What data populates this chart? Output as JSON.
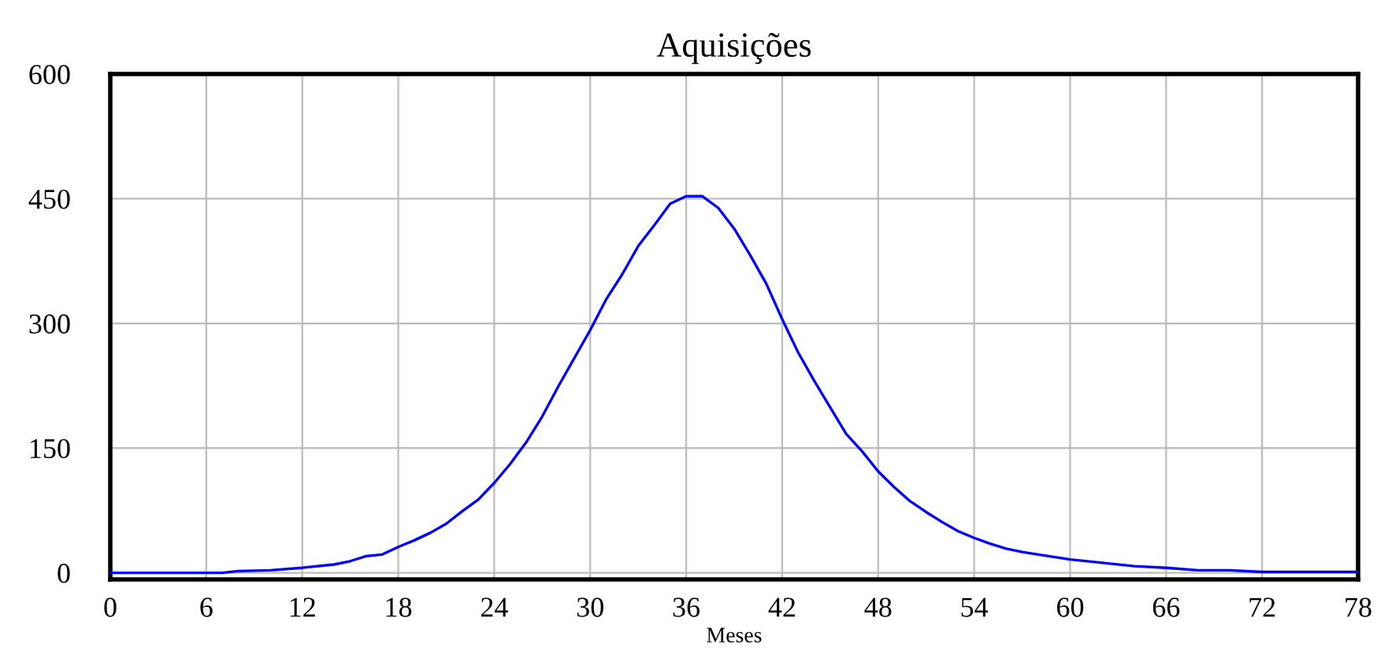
{
  "chart_data": {
    "type": "line",
    "title": "Aquisições",
    "xlabel": "Meses",
    "x": [
      0,
      2,
      4,
      6,
      7,
      8,
      10,
      12,
      14,
      15,
      16,
      17,
      18,
      19,
      20,
      21,
      22,
      23,
      24,
      25,
      26,
      27,
      28,
      29,
      30,
      31,
      32,
      33,
      34,
      35,
      36,
      37,
      38,
      39,
      40,
      41,
      42,
      43,
      44,
      45,
      46,
      47,
      48,
      49,
      50,
      51,
      52,
      53,
      54,
      55,
      56,
      57,
      58,
      60,
      62,
      64,
      66,
      68,
      70,
      72,
      74,
      76,
      78
    ],
    "series": [
      {
        "color": "#0000ff",
        "values": [
          0,
          0,
          0,
          0,
          0,
          2,
          3,
          6,
          10,
          14,
          20,
          22,
          31,
          39,
          48,
          59,
          74,
          88,
          108,
          131,
          157,
          188,
          224,
          258,
          292,
          329,
          359,
          393,
          418,
          444,
          453,
          453,
          439,
          414,
          382,
          348,
          305,
          265,
          231,
          199,
          167,
          146,
          122,
          103,
          86,
          73,
          61,
          50,
          42,
          35,
          29,
          25,
          22,
          16,
          12,
          8,
          6,
          3,
          3,
          1,
          1,
          1,
          1
        ]
      }
    ],
    "xlim": [
      0,
      78
    ],
    "xticks": [
      0,
      6,
      12,
      18,
      24,
      30,
      36,
      42,
      48,
      54,
      60,
      66,
      72,
      78
    ],
    "ylim": [
      -8,
      600
    ],
    "yticks": [
      0,
      150,
      300,
      450,
      600
    ],
    "grid": true,
    "marker": "none",
    "line_style": "solid",
    "legend": false
  }
}
